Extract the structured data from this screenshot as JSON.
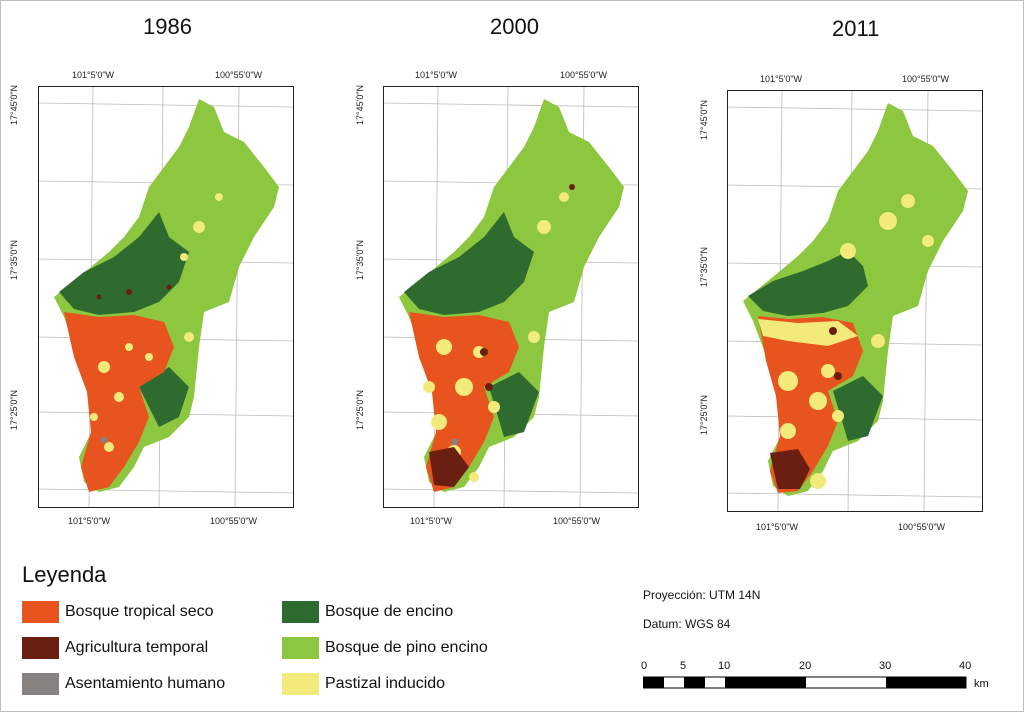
{
  "colors": {
    "bosque_tropical_seco": "#e8541e",
    "agricultura_temporal": "#6b1f10",
    "asentamiento_humano": "#858280",
    "bosque_de_encino": "#2f6b2f",
    "bosque_de_pino_encino": "#8dc63f",
    "pastizal_inducido": "#f2ea7a"
  },
  "maps": [
    {
      "year": "1986",
      "coords": {
        "top_left": "101°5'0\"W",
        "top_right": "100°55'0\"W",
        "bottom_left": "101°5'0\"W",
        "bottom_right": "100°55'0\"W",
        "lat_top": "17°45'0\"N",
        "lat_mid": "17°35'0\"N",
        "lat_bot": "17°25'0\"N"
      }
    },
    {
      "year": "2000",
      "coords": {
        "top_left": "101°5'0\"W",
        "top_right": "100°55'0\"W",
        "bottom_left": "101°5'0\"W",
        "bottom_right": "100°55'0\"W",
        "lat_top": "17°45'0\"N",
        "lat_mid": "17°35'0\"N",
        "lat_bot": "17°25'0\"N"
      }
    },
    {
      "year": "2011",
      "coords": {
        "top_left": "101°5'0\"W",
        "top_right": "100°55'0\"W",
        "bottom_left": "101°5'0\"W",
        "bottom_right": "100°55'0\"W",
        "lat_top": "17°45'0\"N",
        "lat_mid": "17°35'0\"N",
        "lat_bot": "17°25'0\"N"
      }
    }
  ],
  "legend": {
    "title": "Leyenda",
    "items": [
      {
        "label": "Bosque tropical seco",
        "color": "#e8541e"
      },
      {
        "label": "Agricultura temporal",
        "color": "#6b1f10"
      },
      {
        "label": "Asentamiento humano",
        "color": "#858280"
      },
      {
        "label": "Bosque de encino",
        "color": "#2f6b2f"
      },
      {
        "label": "Bosque de pino encino",
        "color": "#8dc63f"
      },
      {
        "label": "Pastizal inducido",
        "color": "#f2ea7a"
      }
    ]
  },
  "info": {
    "projection": "Proyección: UTM 14N",
    "datum": "Datum: WGS 84"
  },
  "scale": {
    "ticks": [
      "0",
      "5",
      "10",
      "20",
      "30",
      "40"
    ],
    "unit": "km"
  }
}
